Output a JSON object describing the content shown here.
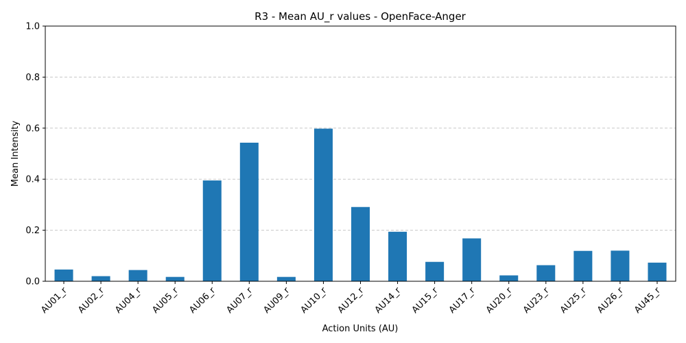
{
  "chart_data": {
    "type": "bar",
    "title": "R3 - Mean AU_r values - OpenFace-Anger",
    "xlabel": "Action Units (AU)",
    "ylabel": "Mean Intensity",
    "ylim": [
      0,
      1.0
    ],
    "yticks": [
      "0.0",
      "0.2",
      "0.4",
      "0.6",
      "0.8",
      "1.0"
    ],
    "grid": "y-dashed",
    "bar_color": "#1f77b4",
    "categories": [
      "AU01_r",
      "AU02_r",
      "AU04_r",
      "AU05_r",
      "AU06_r",
      "AU07_r",
      "AU09_r",
      "AU10_r",
      "AU12_r",
      "AU14_r",
      "AU15_r",
      "AU17_r",
      "AU20_r",
      "AU23_r",
      "AU25_r",
      "AU26_r",
      "AU45_r"
    ],
    "values": [
      0.046,
      0.02,
      0.044,
      0.017,
      0.395,
      0.543,
      0.017,
      0.598,
      0.291,
      0.194,
      0.076,
      0.168,
      0.023,
      0.063,
      0.119,
      0.12,
      0.073
    ]
  }
}
